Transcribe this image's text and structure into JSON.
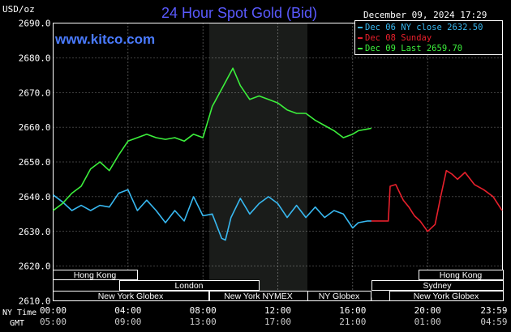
{
  "title": "24 Hour Spot Gold (Bid)",
  "unit_label": "USD/oz",
  "date_label": "December 09, 2024 17:29",
  "site": "www.kitco.com",
  "colors": {
    "background": "#000000",
    "grid": "#ffffff",
    "title": "#5a5aff",
    "site": "#4a7bff",
    "blue_series": "#38b8f0",
    "red_series": "#e8202c",
    "green_series": "#3cf03c",
    "nymex_band": "#1a1c1a"
  },
  "axis_labels": {
    "ny_time": "NY Time",
    "gmt": "GMT"
  },
  "sessions": [
    {
      "label": "Hong Kong",
      "row": 0
    },
    {
      "label": "London",
      "row": 1
    },
    {
      "label": "New York Globex",
      "row": 2
    },
    {
      "label": "New York NYMEX",
      "row": 2
    },
    {
      "label": "NY Globex",
      "row": 2
    },
    {
      "label": "Hong Kong",
      "row": 0
    },
    {
      "label": "Sydney",
      "row": 1
    },
    {
      "label": "New York Globex",
      "row": 2
    }
  ],
  "chart_data": {
    "type": "line",
    "title": "24 Hour Spot Gold (Bid)",
    "ylabel": "USD/oz",
    "ylim": [
      2610,
      2690
    ],
    "yticks": [
      "2690.0",
      "2680.0",
      "2670.0",
      "2660.0",
      "2650.0",
      "2640.0",
      "2630.0",
      "2620.0",
      "2610.0"
    ],
    "x_ny_time": [
      "00:00",
      "04:00",
      "08:00",
      "12:00",
      "16:00",
      "20:00",
      "23:59"
    ],
    "x_gmt": [
      "05:00",
      "09:00",
      "13:00",
      "17:00",
      "21:00",
      "01:00",
      "04:59"
    ],
    "grid": true,
    "legend_position": "top-right",
    "series": [
      {
        "name": "Dec 06 NY close 2632.50",
        "color": "#38b8f0",
        "hours": [
          0,
          0.5,
          1,
          1.5,
          2,
          2.5,
          3,
          3.5,
          4,
          4.5,
          5,
          5.5,
          6,
          6.5,
          7,
          7.5,
          8,
          8.5,
          9,
          9.2,
          9.5,
          10,
          10.5,
          11,
          11.5,
          12,
          12.5,
          13,
          13.5,
          14,
          14.5,
          15,
          15.5,
          16,
          16.3,
          16.8,
          17
        ],
        "values": [
          2640.5,
          2638.5,
          2636,
          2637.5,
          2636,
          2637.5,
          2637,
          2641,
          2642,
          2636,
          2639,
          2636,
          2632.5,
          2636,
          2633,
          2640,
          2634.5,
          2635,
          2628,
          2627.5,
          2634,
          2639.5,
          2635,
          2638,
          2640,
          2638,
          2634,
          2637.5,
          2634,
          2637,
          2634,
          2636,
          2635,
          2631,
          2632.5,
          2633,
          2633
        ]
      },
      {
        "name": "Dec 08 Sunday",
        "color": "#e8202c",
        "hours": [
          17,
          17.9,
          18,
          18.3,
          18.7,
          19,
          19.3,
          19.6,
          20,
          20.4,
          20.7,
          21,
          21.3,
          21.6,
          22,
          22.5,
          23,
          23.5,
          23.98
        ],
        "values": [
          2633,
          2633,
          2643,
          2643.5,
          2639,
          2637,
          2634.5,
          2633,
          2630,
          2632,
          2640,
          2647.5,
          2646.5,
          2645,
          2647,
          2643.5,
          2642,
          2640,
          2636
        ]
      },
      {
        "name": "Dec 09 Last 2659.70",
        "color": "#3cf03c",
        "hours": [
          0,
          0.5,
          1,
          1.5,
          2,
          2.5,
          3,
          3.5,
          4,
          4.5,
          5,
          5.5,
          6,
          6.5,
          7,
          7.5,
          8,
          8.5,
          9,
          9.3,
          9.6,
          10,
          10.5,
          11,
          11.5,
          12,
          12.5,
          13,
          13.5,
          14,
          14.5,
          15,
          15.5,
          16,
          16.3,
          16.8,
          17
        ],
        "values": [
          2636,
          2638,
          2641,
          2643,
          2648,
          2650,
          2647.5,
          2652,
          2656,
          2657,
          2658,
          2657,
          2656.5,
          2657,
          2656,
          2658,
          2657,
          2666,
          2671,
          2674,
          2677,
          2672,
          2668,
          2669,
          2668,
          2667,
          2665,
          2664,
          2664,
          2662,
          2660.5,
          2659,
          2657,
          2658,
          2659,
          2659.5,
          2659.7
        ]
      }
    ]
  }
}
